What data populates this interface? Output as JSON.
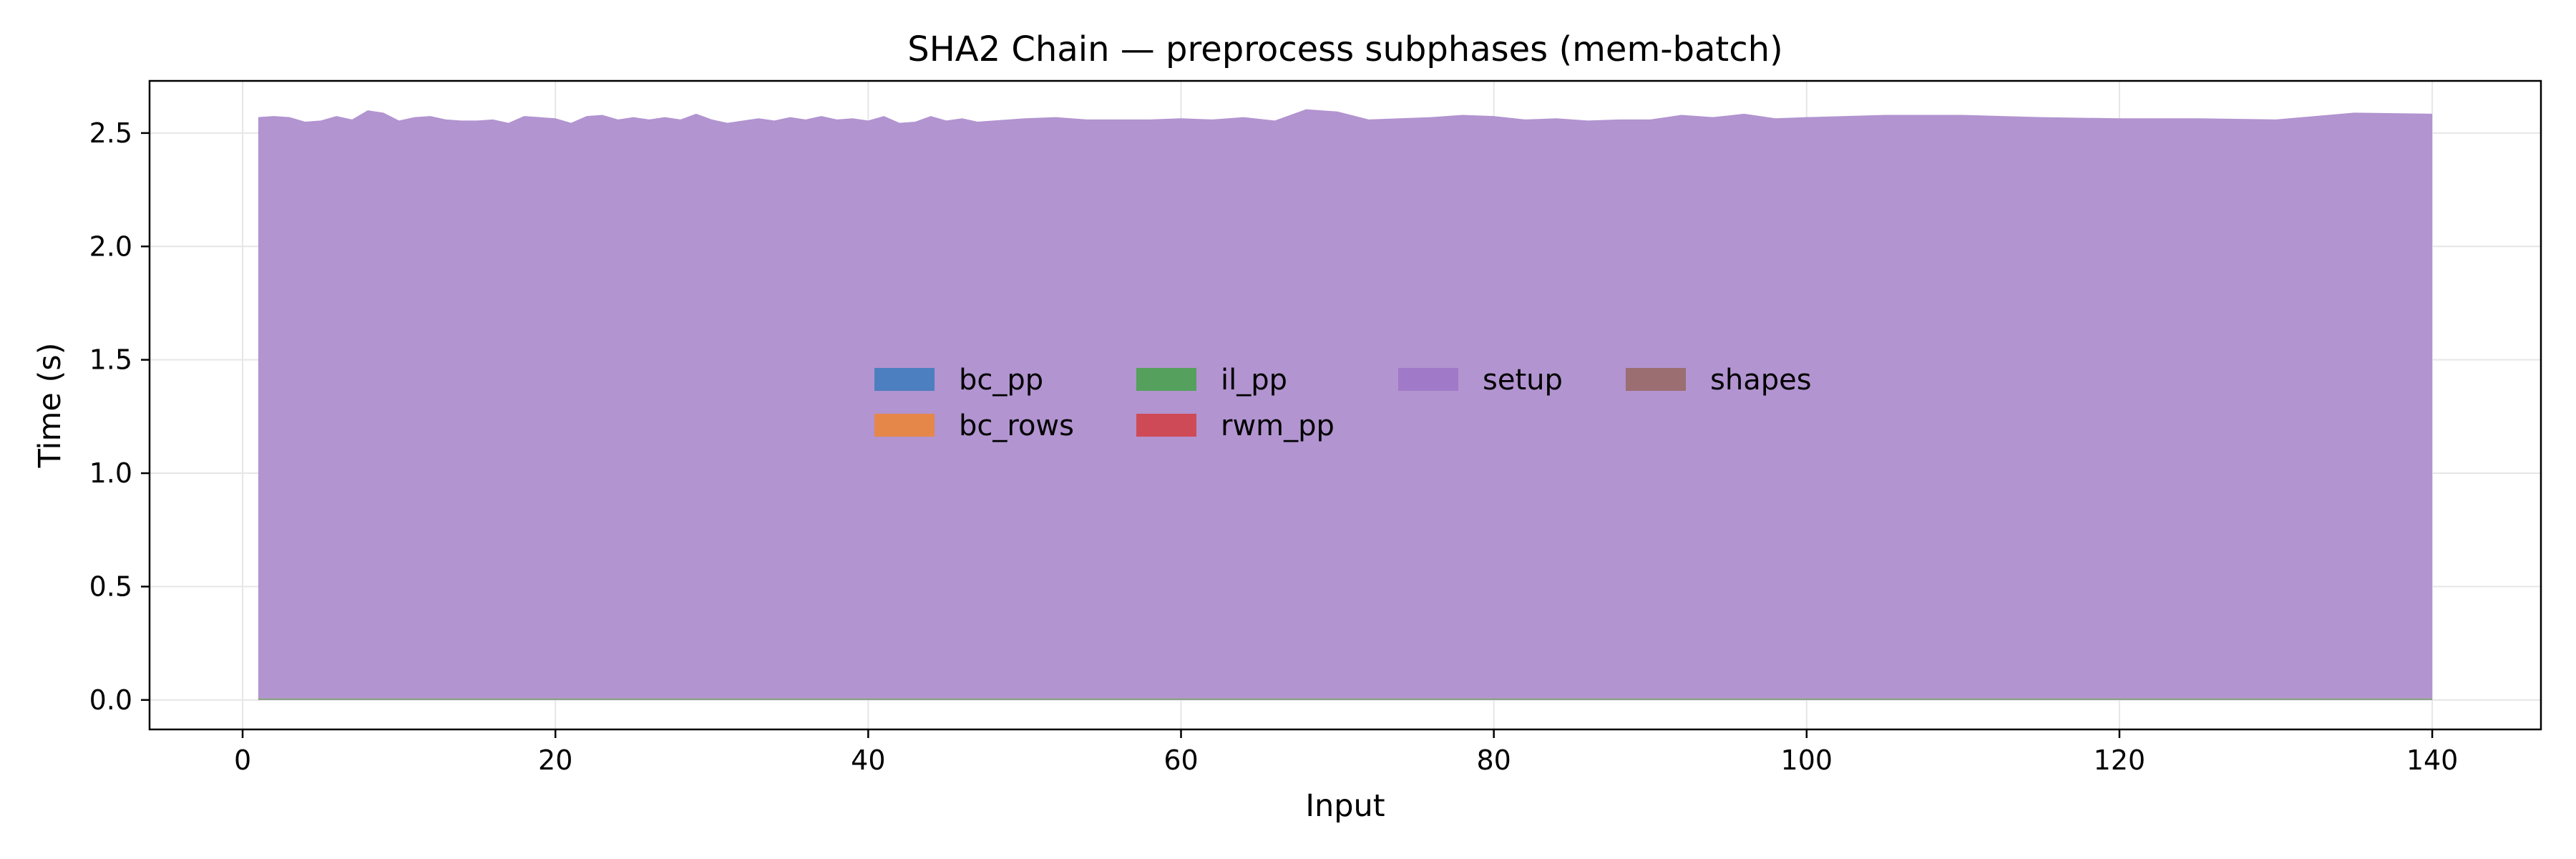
{
  "chart_data": {
    "type": "area",
    "stacked": true,
    "title": "SHA2 Chain — preprocess subphases (mem-batch)",
    "xlabel": "Input",
    "ylabel": "Time (s)",
    "xlim": [
      -5.95,
      146.95
    ],
    "ylim": [
      -0.13,
      2.73
    ],
    "xticks": [
      0,
      20,
      40,
      60,
      80,
      100,
      120,
      140
    ],
    "yticks": [
      0.0,
      0.5,
      1.0,
      1.5,
      2.0,
      2.5
    ],
    "xtick_labels": [
      "0",
      "20",
      "40",
      "60",
      "80",
      "100",
      "120",
      "140"
    ],
    "ytick_labels": [
      "0.0",
      "0.5",
      "1.0",
      "1.5",
      "2.0",
      "2.5"
    ],
    "grid": true,
    "legend_position": "center",
    "x": [
      1,
      2,
      3,
      4,
      5,
      6,
      7,
      8,
      9,
      10,
      11,
      12,
      13,
      14,
      15,
      16,
      17,
      18,
      19,
      20,
      21,
      22,
      23,
      24,
      25,
      26,
      27,
      28,
      29,
      30,
      31,
      32,
      33,
      34,
      35,
      36,
      37,
      38,
      39,
      40,
      41,
      42,
      43,
      44,
      45,
      46,
      47,
      48,
      49,
      50,
      52,
      54,
      56,
      58,
      60,
      62,
      64,
      66,
      68,
      70,
      72,
      74,
      76,
      78,
      80,
      82,
      84,
      86,
      88,
      90,
      92,
      94,
      96,
      98,
      100,
      105,
      110,
      115,
      120,
      125,
      130,
      135,
      140
    ],
    "series": [
      {
        "name": "bc_pp",
        "color": "#4c7fbf",
        "values": [
          0.001,
          0.001,
          0.001,
          0.001,
          0.001,
          0.001,
          0.001,
          0.001,
          0.001,
          0.001,
          0.001,
          0.001,
          0.001,
          0.001,
          0.001,
          0.001,
          0.001,
          0.001,
          0.001,
          0.001,
          0.001,
          0.001,
          0.001,
          0.001,
          0.001,
          0.001,
          0.001,
          0.001,
          0.001,
          0.001,
          0.001,
          0.001,
          0.001,
          0.001,
          0.001,
          0.001,
          0.001,
          0.001,
          0.001,
          0.001,
          0.001,
          0.001,
          0.001,
          0.001,
          0.001,
          0.001,
          0.001,
          0.001,
          0.001,
          0.001,
          0.001,
          0.001,
          0.001,
          0.001,
          0.001,
          0.001,
          0.001,
          0.001,
          0.001,
          0.001,
          0.001,
          0.001,
          0.001,
          0.001,
          0.001,
          0.001,
          0.001,
          0.001,
          0.001,
          0.001,
          0.001,
          0.001,
          0.001,
          0.001,
          0.001,
          0.001,
          0.001,
          0.001,
          0.001,
          0.001,
          0.001,
          0.001,
          0.001
        ]
      },
      {
        "name": "bc_rows",
        "color": "#e6874a",
        "values": [
          0.001,
          0.001,
          0.001,
          0.001,
          0.001,
          0.001,
          0.001,
          0.001,
          0.001,
          0.001,
          0.001,
          0.001,
          0.001,
          0.001,
          0.001,
          0.001,
          0.001,
          0.001,
          0.001,
          0.001,
          0.001,
          0.001,
          0.001,
          0.001,
          0.001,
          0.001,
          0.001,
          0.001,
          0.001,
          0.001,
          0.001,
          0.001,
          0.001,
          0.001,
          0.001,
          0.001,
          0.001,
          0.001,
          0.001,
          0.001,
          0.001,
          0.001,
          0.001,
          0.001,
          0.001,
          0.001,
          0.001,
          0.001,
          0.001,
          0.001,
          0.001,
          0.001,
          0.001,
          0.001,
          0.001,
          0.001,
          0.001,
          0.001,
          0.001,
          0.001,
          0.001,
          0.001,
          0.001,
          0.001,
          0.001,
          0.001,
          0.001,
          0.001,
          0.001,
          0.001,
          0.001,
          0.001,
          0.001,
          0.001,
          0.001,
          0.001,
          0.001,
          0.001,
          0.001,
          0.001,
          0.001,
          0.001,
          0.001
        ]
      },
      {
        "name": "il_pp",
        "color": "#55a05c",
        "values": [
          0.004,
          0.004,
          0.004,
          0.004,
          0.004,
          0.004,
          0.004,
          0.004,
          0.004,
          0.004,
          0.004,
          0.004,
          0.004,
          0.004,
          0.004,
          0.004,
          0.004,
          0.004,
          0.004,
          0.004,
          0.004,
          0.004,
          0.004,
          0.004,
          0.004,
          0.004,
          0.004,
          0.004,
          0.004,
          0.004,
          0.004,
          0.004,
          0.004,
          0.004,
          0.004,
          0.004,
          0.004,
          0.004,
          0.004,
          0.004,
          0.004,
          0.004,
          0.004,
          0.004,
          0.004,
          0.004,
          0.004,
          0.004,
          0.004,
          0.004,
          0.004,
          0.004,
          0.004,
          0.004,
          0.004,
          0.004,
          0.004,
          0.004,
          0.004,
          0.004,
          0.004,
          0.004,
          0.004,
          0.004,
          0.004,
          0.004,
          0.004,
          0.004,
          0.004,
          0.004,
          0.004,
          0.004,
          0.004,
          0.004,
          0.004,
          0.004,
          0.004,
          0.004,
          0.004,
          0.004,
          0.004,
          0.004,
          0.004
        ]
      },
      {
        "name": "rwm_pp",
        "color": "#cf4a57",
        "values": [
          0.001,
          0.001,
          0.001,
          0.001,
          0.001,
          0.001,
          0.001,
          0.001,
          0.001,
          0.001,
          0.001,
          0.001,
          0.001,
          0.001,
          0.001,
          0.001,
          0.001,
          0.001,
          0.001,
          0.001,
          0.001,
          0.001,
          0.001,
          0.001,
          0.001,
          0.001,
          0.001,
          0.001,
          0.001,
          0.001,
          0.001,
          0.001,
          0.001,
          0.001,
          0.001,
          0.001,
          0.001,
          0.001,
          0.001,
          0.001,
          0.001,
          0.001,
          0.001,
          0.001,
          0.001,
          0.001,
          0.001,
          0.001,
          0.001,
          0.001,
          0.001,
          0.001,
          0.001,
          0.001,
          0.001,
          0.001,
          0.001,
          0.001,
          0.001,
          0.001,
          0.001,
          0.001,
          0.001,
          0.001,
          0.001,
          0.001,
          0.001,
          0.001,
          0.001,
          0.001,
          0.001,
          0.001,
          0.001,
          0.001,
          0.001,
          0.001,
          0.001,
          0.001,
          0.001,
          0.001,
          0.001,
          0.001,
          0.001
        ]
      },
      {
        "name": "setup",
        "color": "#b294d0",
        "values": [
          2.563,
          2.568,
          2.563,
          2.543,
          2.548,
          2.568,
          2.553,
          2.593,
          2.583,
          2.548,
          2.563,
          2.568,
          2.553,
          2.548,
          2.548,
          2.553,
          2.538,
          2.568,
          2.563,
          2.558,
          2.538,
          2.568,
          2.573,
          2.553,
          2.563,
          2.553,
          2.563,
          2.553,
          2.578,
          2.553,
          2.538,
          2.548,
          2.558,
          2.548,
          2.563,
          2.553,
          2.568,
          2.553,
          2.558,
          2.548,
          2.568,
          2.538,
          2.543,
          2.568,
          2.548,
          2.558,
          2.543,
          2.548,
          2.553,
          2.558,
          2.563,
          2.553,
          2.553,
          2.553,
          2.558,
          2.553,
          2.563,
          2.548,
          2.598,
          2.588,
          2.553,
          2.558,
          2.563,
          2.573,
          2.568,
          2.553,
          2.558,
          2.548,
          2.553,
          2.553,
          2.573,
          2.563,
          2.578,
          2.558,
          2.563,
          2.573,
          2.573,
          2.563,
          2.558,
          2.558,
          2.553,
          2.583,
          2.578
        ]
      },
      {
        "name": "shapes",
        "color": "#9b6e72",
        "values": [
          0.0,
          0.0,
          0.0,
          0.0,
          0.0,
          0.0,
          0.0,
          0.0,
          0.0,
          0.0,
          0.0,
          0.0,
          0.0,
          0.0,
          0.0,
          0.0,
          0.0,
          0.0,
          0.0,
          0.0,
          0.0,
          0.0,
          0.0,
          0.0,
          0.0,
          0.0,
          0.0,
          0.0,
          0.0,
          0.0,
          0.0,
          0.0,
          0.0,
          0.0,
          0.0,
          0.0,
          0.0,
          0.0,
          0.0,
          0.0,
          0.0,
          0.0,
          0.0,
          0.0,
          0.0,
          0.0,
          0.0,
          0.0,
          0.0,
          0.0,
          0.0,
          0.0,
          0.0,
          0.0,
          0.0,
          0.0,
          0.0,
          0.0,
          0.0,
          0.0,
          0.0,
          0.0,
          0.0,
          0.0,
          0.0,
          0.0,
          0.0,
          0.0,
          0.0,
          0.0,
          0.0,
          0.0,
          0.0,
          0.0,
          0.0,
          0.0,
          0.0,
          0.0,
          0.0,
          0.0,
          0.0,
          0.0,
          0.0
        ]
      }
    ]
  }
}
